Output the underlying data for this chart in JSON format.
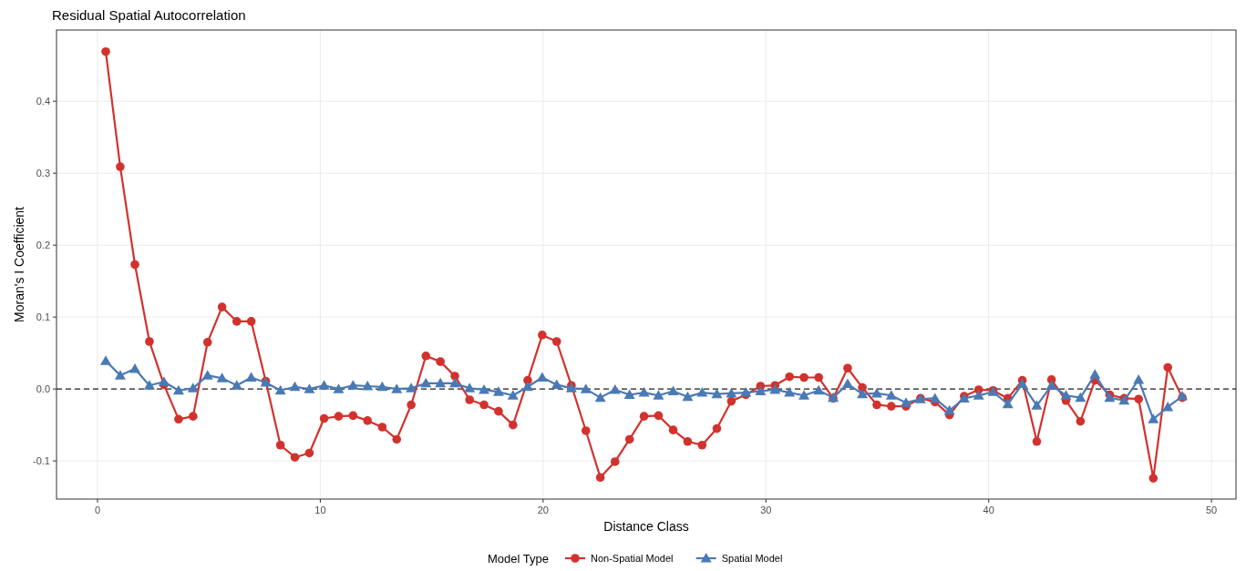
{
  "chart_data": {
    "type": "line",
    "title": "Residual Spatial Autocorrelation",
    "xlabel": "Distance Class",
    "ylabel": "Moran's I Coefficient",
    "legend_title": "Model Type",
    "x": [
      0.37,
      1.02,
      1.68,
      2.33,
      2.98,
      3.64,
      4.29,
      4.94,
      5.59,
      6.25,
      6.9,
      7.55,
      8.21,
      8.86,
      9.51,
      10.17,
      10.82,
      11.47,
      12.12,
      12.78,
      13.43,
      14.08,
      14.74,
      15.39,
      16.04,
      16.7,
      17.35,
      18.0,
      18.65,
      19.31,
      19.96,
      20.61,
      21.27,
      21.92,
      22.57,
      23.23,
      23.88,
      24.53,
      25.18,
      25.84,
      26.49,
      27.14,
      27.8,
      28.45,
      29.1,
      29.76,
      30.41,
      31.06,
      31.71,
      32.37,
      33.02,
      33.67,
      34.33,
      34.98,
      35.63,
      36.29,
      36.94,
      37.59,
      38.24,
      38.9,
      39.55,
      40.2,
      40.86,
      41.51,
      42.16,
      42.82,
      43.47,
      44.12,
      44.77,
      45.43,
      46.08,
      46.73,
      47.39,
      48.04,
      48.69
    ],
    "series": [
      {
        "name": "Non-Spatial Model",
        "color": "#d2322d",
        "marker": "circle",
        "values": [
          0.469,
          0.309,
          0.173,
          0.066,
          0.006,
          -0.042,
          -0.038,
          0.065,
          0.114,
          0.094,
          0.094,
          0.011,
          -0.078,
          -0.095,
          -0.089,
          -0.041,
          -0.038,
          -0.037,
          -0.044,
          -0.053,
          -0.07,
          -0.022,
          0.046,
          0.038,
          0.018,
          -0.015,
          -0.022,
          -0.031,
          -0.05,
          0.012,
          0.075,
          0.066,
          0.005,
          -0.058,
          -0.123,
          -0.101,
          -0.07,
          -0.038,
          -0.037,
          -0.057,
          -0.073,
          -0.078,
          -0.055,
          -0.017,
          -0.008,
          0.004,
          0.005,
          0.017,
          0.016,
          0.016,
          -0.013,
          0.029,
          0.002,
          -0.022,
          -0.024,
          -0.024,
          -0.013,
          -0.018,
          -0.036,
          -0.01,
          -0.001,
          -0.002,
          -0.013,
          0.012,
          -0.073,
          0.013,
          -0.016,
          -0.045,
          0.012,
          -0.008,
          -0.013,
          -0.014,
          -0.124,
          0.03,
          -0.012
        ]
      },
      {
        "name": "Spatial Model",
        "color": "#4a7ab5",
        "marker": "triangle",
        "values": [
          0.039,
          0.019,
          0.028,
          0.005,
          0.01,
          -0.002,
          0.001,
          0.019,
          0.015,
          0.005,
          0.016,
          0.009,
          -0.002,
          0.003,
          0.0,
          0.005,
          0.0,
          0.005,
          0.004,
          0.003,
          0.0,
          0.001,
          0.008,
          0.008,
          0.008,
          0.001,
          -0.001,
          -0.004,
          -0.009,
          0.003,
          0.016,
          0.006,
          0.001,
          0.0,
          -0.012,
          -0.001,
          -0.008,
          -0.005,
          -0.009,
          -0.003,
          -0.011,
          -0.005,
          -0.007,
          -0.006,
          -0.005,
          -0.003,
          -0.001,
          -0.005,
          -0.009,
          -0.002,
          -0.012,
          0.007,
          -0.007,
          -0.006,
          -0.009,
          -0.019,
          -0.014,
          -0.013,
          -0.03,
          -0.013,
          -0.009,
          -0.004,
          -0.021,
          0.007,
          -0.023,
          0.005,
          -0.009,
          -0.012,
          0.02,
          -0.012,
          -0.016,
          0.013,
          -0.042,
          -0.025,
          -0.01
        ]
      }
    ],
    "xlim": [
      -1.84,
      51.1
    ],
    "xticks": [
      0,
      10,
      20,
      30,
      40,
      50
    ],
    "ylim": [
      -0.153,
      0.499
    ],
    "yticks": [
      {
        "value": -0.1,
        "label": "-0.1"
      },
      {
        "value": 0,
        "label": "0.0"
      },
      {
        "value": 0.1,
        "label": "0.1"
      },
      {
        "value": 0.2,
        "label": "0.2"
      },
      {
        "value": 0.3,
        "label": "0.3"
      },
      {
        "value": 0.4,
        "label": "0.4"
      }
    ],
    "ref_lines": [
      {
        "axis": "y",
        "value": 0,
        "line_style": "dashed",
        "color": "#222222"
      }
    ],
    "grid": true,
    "legend": "bottom",
    "line_style": "solid"
  }
}
